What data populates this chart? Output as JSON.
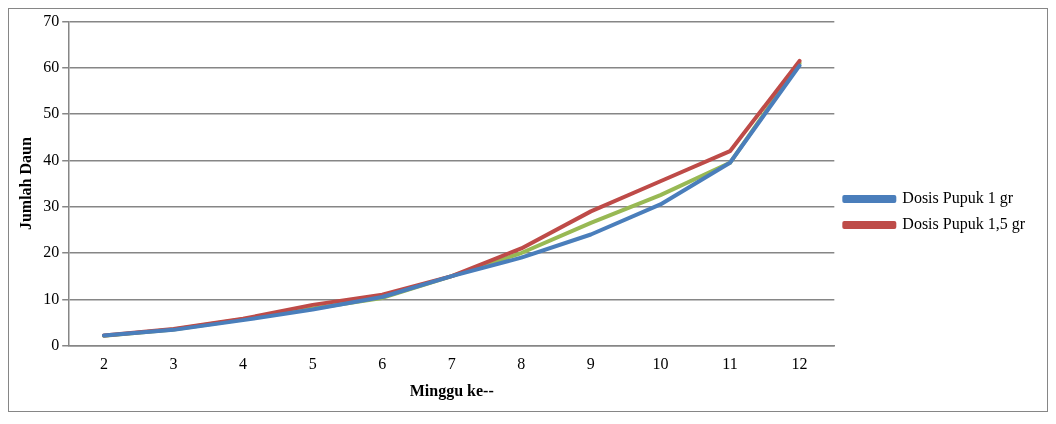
{
  "chart_data": {
    "type": "line",
    "xlabel": "Minggu ke--",
    "ylabel": "Jumlah Daun",
    "categories": [
      "2",
      "3",
      "4",
      "5",
      "6",
      "7",
      "8",
      "9",
      "10",
      "11",
      "12"
    ],
    "series": [
      {
        "name": "Dosis Pupuk 1 gr",
        "color": "#4a7ebb",
        "values": [
          2.2,
          3.4,
          5.5,
          7.8,
          10.5,
          15,
          19,
          24,
          30.5,
          39.5,
          60.5
        ]
      },
      {
        "name": "Dosis Pupuk 1,5 gr",
        "color": "#be4b48",
        "values": [
          2.2,
          3.6,
          5.8,
          8.8,
          11,
          15,
          21,
          29,
          35.5,
          42,
          61.5
        ]
      },
      {
        "color": "#98b954",
        "values": [
          2.1,
          3.5,
          5.7,
          8,
          10.3,
          15,
          20,
          26.5,
          32.5,
          39.5,
          61
        ]
      }
    ],
    "ylim": [
      0,
      70
    ],
    "yticks": [
      0,
      10,
      20,
      30,
      40,
      50,
      60,
      70
    ],
    "grid": "y",
    "legend": "right",
    "marker": "none",
    "line_style": "solid"
  }
}
